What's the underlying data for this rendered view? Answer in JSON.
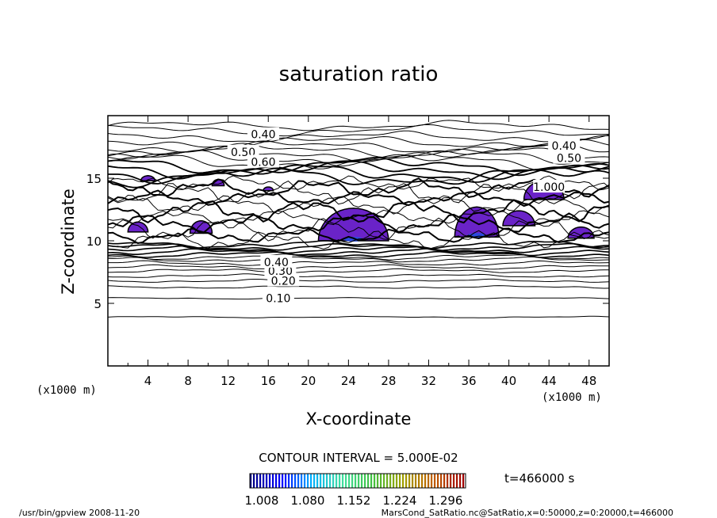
{
  "chart_data": {
    "type": "contour",
    "title": "saturation ratio",
    "xlabel": "X-coordinate",
    "ylabel": "Z-coordinate",
    "x_unit": "(x1000 m)",
    "y_unit": "(x1000 m)",
    "xlim": [
      0,
      50
    ],
    "ylim": [
      0,
      20
    ],
    "x_ticks": [
      "4",
      "8",
      "12",
      "16",
      "20",
      "24",
      "28",
      "32",
      "36",
      "40",
      "44",
      "48"
    ],
    "y_ticks": [
      "5",
      "10",
      "15"
    ],
    "contour_interval_text": "CONTOUR INTERVAL = 5.000E-02",
    "contour_labels": [
      {
        "text": "0.40",
        "x": 15.5,
        "z": 18.5
      },
      {
        "text": "0.40",
        "x": 45.5,
        "z": 17.6
      },
      {
        "text": "0.50",
        "x": 13.5,
        "z": 17.1
      },
      {
        "text": "0.50",
        "x": 46.0,
        "z": 16.6
      },
      {
        "text": "0.60",
        "x": 15.5,
        "z": 16.3
      },
      {
        "text": "0.10",
        "x": 17.0,
        "z": 5.4
      },
      {
        "text": "0.20",
        "x": 17.5,
        "z": 6.8
      },
      {
        "text": "0.30",
        "x": 17.2,
        "z": 7.6
      },
      {
        "text": "0.40",
        "x": 16.8,
        "z": 8.3
      },
      {
        "text": "1.000",
        "x": 44.0,
        "z": 14.3
      }
    ],
    "shading_colorbar": {
      "ticks": [
        "1.008",
        "1.080",
        "1.152",
        "1.224",
        "1.296"
      ],
      "colors": [
        "#000080",
        "#0000ff",
        "#00b0ff",
        "#40e0a0",
        "#40c040",
        "#a0a000",
        "#c06000",
        "#a00000"
      ]
    },
    "time_text": "t=466000 s",
    "footer_left": "/usr/bin/gpview  2008-11-20",
    "footer_right": "MarsCond_SatRatio.nc@SatRatio,x=0:50000,z=0:20000,t=466000"
  },
  "colors": {
    "supersaturation_fill": "#6a23c8",
    "supersaturation_core": "#2a4ce0"
  }
}
